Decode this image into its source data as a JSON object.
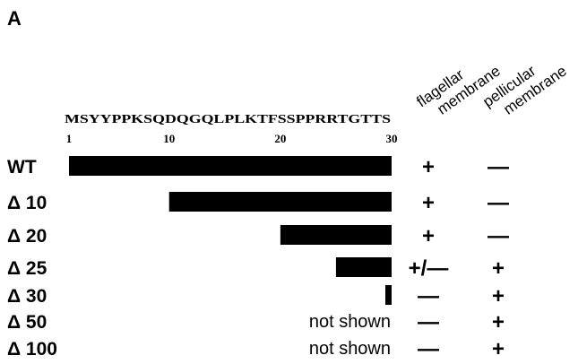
{
  "panel_label": "A",
  "sequence": "MSYYPPKSQDQGQLPLKTFSSPPRRTGTTS",
  "sequence_ticks": [
    {
      "label": "1",
      "pos": 1
    },
    {
      "label": "10",
      "pos": 10
    },
    {
      "label": "20",
      "pos": 20
    },
    {
      "label": "30",
      "pos": 30
    }
  ],
  "columns": [
    {
      "line1": "flagellar",
      "line2": "membrane"
    },
    {
      "line1": "pellicular",
      "line2": "membrane"
    }
  ],
  "rows": [
    {
      "label": "WT",
      "bar_start": 1,
      "bar_end": 30,
      "note": "",
      "flagellar": "+",
      "pellicular": "—"
    },
    {
      "label": "Δ 10",
      "bar_start": 10,
      "bar_end": 30,
      "note": "",
      "flagellar": "+",
      "pellicular": "—"
    },
    {
      "label": "Δ 20",
      "bar_start": 20,
      "bar_end": 30,
      "note": "",
      "flagellar": "+",
      "pellicular": "—"
    },
    {
      "label": "Δ 25",
      "bar_start": 25,
      "bar_end": 30,
      "note": "",
      "flagellar": "+/—",
      "pellicular": "+"
    },
    {
      "label": "Δ 30",
      "bar_start": 30,
      "bar_end": 30,
      "note": "",
      "flagellar": "—",
      "pellicular": "+"
    },
    {
      "label": "Δ 50",
      "bar_start": null,
      "bar_end": null,
      "note": "not shown",
      "flagellar": "—",
      "pellicular": "+"
    },
    {
      "label": "Δ 100",
      "bar_start": null,
      "bar_end": null,
      "note": "not shown",
      "flagellar": "—",
      "pellicular": "+"
    }
  ]
}
